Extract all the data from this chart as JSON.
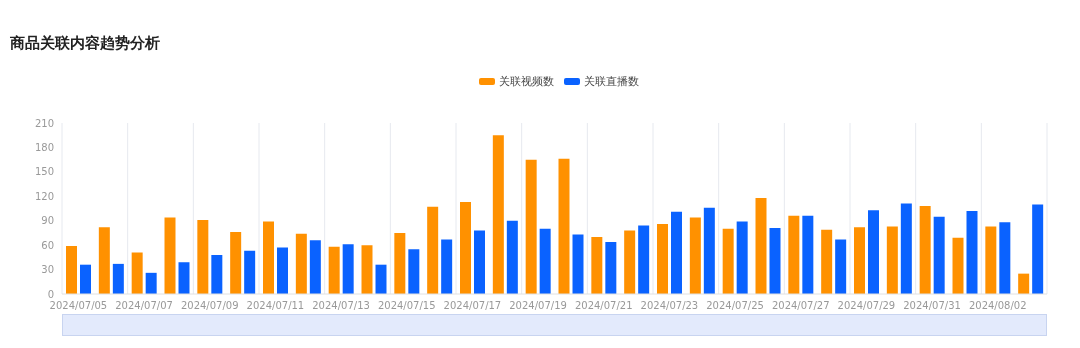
{
  "chart_data": {
    "type": "bar",
    "title": "商品关联内容趋势分析",
    "categories": [
      "2024/07/05",
      null,
      "2024/07/07",
      null,
      "2024/07/09",
      null,
      "2024/07/11",
      null,
      "2024/07/13",
      null,
      "2024/07/15",
      null,
      "2024/07/17",
      null,
      "2024/07/19",
      null,
      "2024/07/21",
      null,
      "2024/07/23",
      null,
      "2024/07/25",
      null,
      "2024/07/27",
      null,
      "2024/07/29",
      null,
      "2024/07/31",
      null,
      "2024/08/02",
      null
    ],
    "series": [
      {
        "name": "关联视频数",
        "color": "#ff9100",
        "values": [
          59,
          82,
          51,
          94,
          91,
          76,
          89,
          74,
          58,
          60,
          75,
          107,
          113,
          195,
          165,
          166,
          70,
          78,
          86,
          94,
          80,
          118,
          96,
          79,
          82,
          83,
          108,
          69,
          83,
          25
        ]
      },
      {
        "name": "关联直播数",
        "color": "#0a62ff",
        "values": [
          36,
          37,
          26,
          39,
          48,
          53,
          57,
          66,
          61,
          36,
          55,
          67,
          78,
          90,
          80,
          73,
          64,
          84,
          101,
          106,
          89,
          81,
          96,
          67,
          103,
          111,
          95,
          102,
          88,
          110
        ]
      }
    ],
    "ylim": [
      0,
      210
    ],
    "yticks": [
      0,
      30,
      60,
      90,
      120,
      150,
      180,
      210
    ],
    "grid": "x",
    "legend": "top"
  }
}
